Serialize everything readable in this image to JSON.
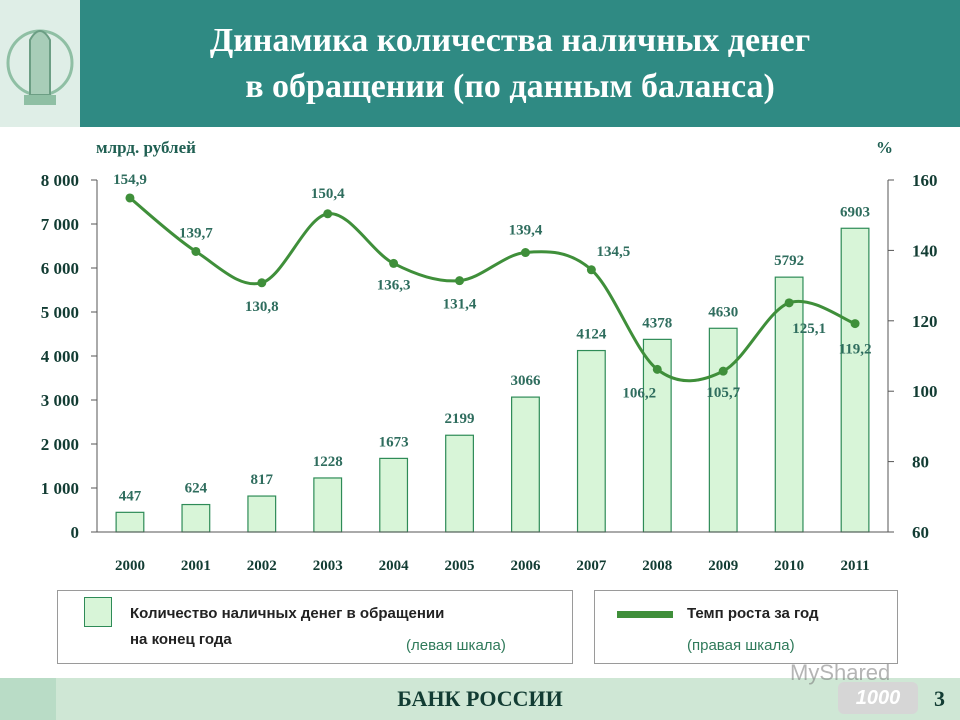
{
  "header": {
    "title_line1": "Динамика количества наличных денег",
    "title_line2": "в обращении (по данным баланса)"
  },
  "chart_data": {
    "type": "bar",
    "left_axis_label": "млрд. рублей",
    "right_axis_label": "%",
    "categories": [
      "2000",
      "2001",
      "2002",
      "2003",
      "2004",
      "2005",
      "2006",
      "2007",
      "2008",
      "2009",
      "2010",
      "2011"
    ],
    "bar_series": {
      "name": "Количество наличных денег в обращении на конец года",
      "values": [
        447,
        624,
        817,
        1228,
        1673,
        2199,
        3066,
        4124,
        4378,
        4630,
        5792,
        6903
      ]
    },
    "line_series": {
      "name": "Темп роста за год",
      "values": [
        154.9,
        139.7,
        130.8,
        150.4,
        136.3,
        131.4,
        139.4,
        134.5,
        106.2,
        105.7,
        125.1,
        119.2
      ]
    },
    "bar_labels": [
      "447",
      "624",
      "817",
      "1228",
      "1673",
      "2199",
      "3066",
      "4124",
      "4378",
      "4630",
      "5792",
      "6903"
    ],
    "line_labels": [
      "154,9",
      "139,7",
      "130,8",
      "150,4",
      "136,3",
      "131,4",
      "139,4",
      "134,5",
      "106,2",
      "105,7",
      "125,1",
      "119,2"
    ],
    "left_ylim": [
      0,
      8000
    ],
    "left_ticks": [
      "0",
      "1 000",
      "2 000",
      "3 000",
      "4 000",
      "5 000",
      "6 000",
      "7 000",
      "8 000"
    ],
    "right_ylim": [
      60,
      160
    ],
    "right_ticks": [
      "60",
      "80",
      "100",
      "120",
      "140",
      "160"
    ],
    "grid": false,
    "legend_placement": "bottom"
  },
  "legend": {
    "bars_line1": "Количество наличных денег в обращении",
    "bars_line2": "на конец года",
    "bars_note": "(левая шкала)",
    "line_label": "Темп роста за год",
    "line_note": "(правая шкала)"
  },
  "footer": {
    "bank": "БАНК РОССИИ",
    "page": "3",
    "watermark": "MyShared",
    "banknote": "1000"
  },
  "colors": {
    "header_band": "#2f8a83",
    "bar_fill": "#d8f5d8",
    "bar_stroke": "#2e8b57",
    "line": "#3f8f3a"
  }
}
